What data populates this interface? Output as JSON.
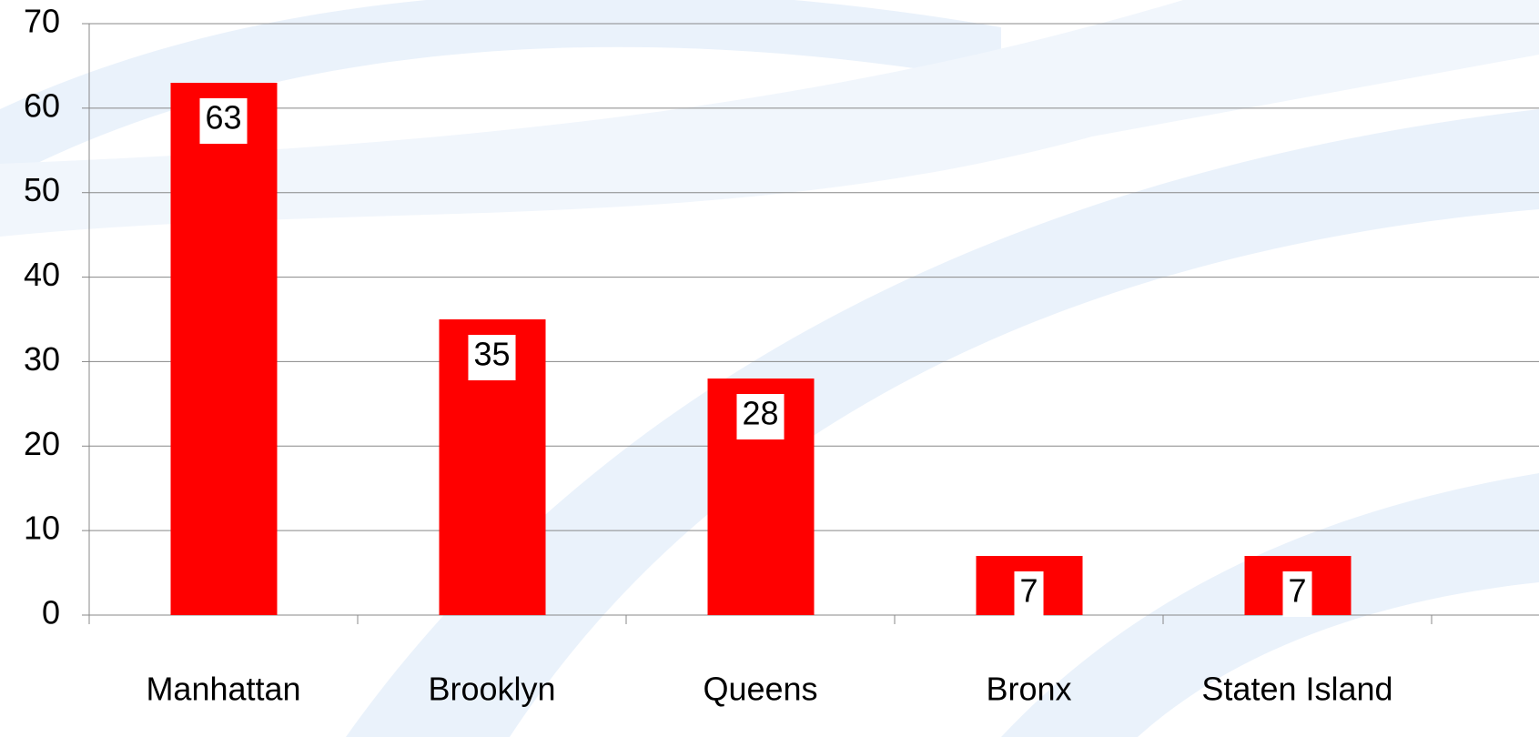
{
  "chart_data": {
    "type": "bar",
    "categories": [
      "Manhattan",
      "Brooklyn",
      "Queens",
      "Bronx",
      "Staten Island"
    ],
    "values": [
      63,
      35,
      28,
      7,
      7
    ],
    "color": "#ff0000",
    "ylim": [
      0,
      70
    ],
    "yticks": [
      0,
      10,
      20,
      30,
      40,
      50,
      60,
      70
    ],
    "grid": true
  }
}
